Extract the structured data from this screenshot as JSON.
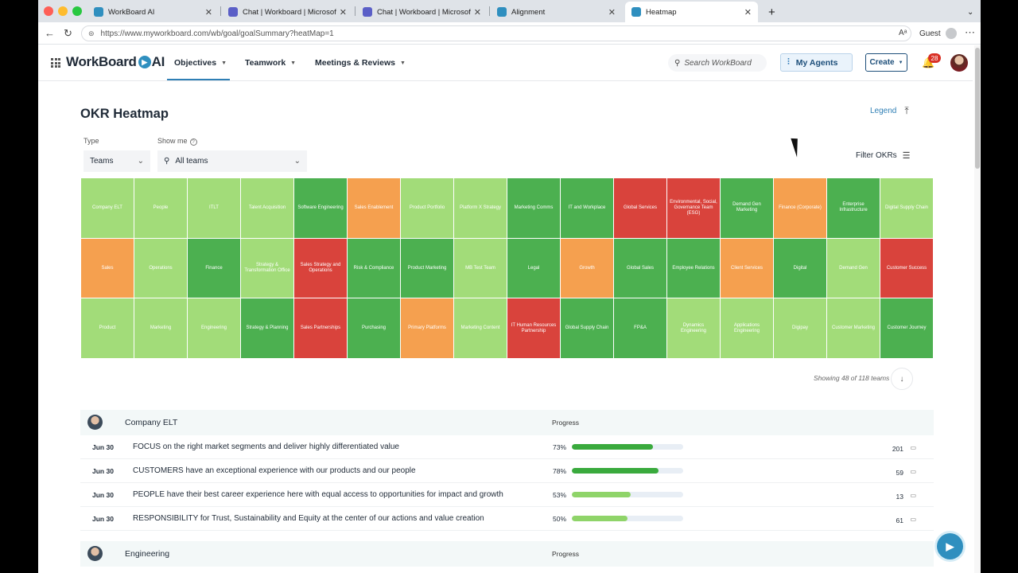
{
  "browser": {
    "tabs": [
      {
        "label": "WorkBoard AI",
        "active": false
      },
      {
        "label": "Chat | Workboard | Microsoft Teams",
        "active": false
      },
      {
        "label": "Chat | Workboard | Microsoft Teams",
        "active": false
      },
      {
        "label": "Alignment",
        "active": false
      },
      {
        "label": "Heatmap",
        "active": true
      }
    ],
    "new_tab_icon": "plus-icon",
    "url": "https://www.myworkboard.com/wb/goal/goalSummary?heatMap=1",
    "profile_label": "Guest"
  },
  "header": {
    "logo_text": "WorkBoard",
    "logo_suffix": "AI",
    "nav": [
      {
        "label": "Objectives"
      },
      {
        "label": "Teamwork"
      },
      {
        "label": "Meetings & Reviews"
      }
    ],
    "search_placeholder": "Search WorkBoard",
    "agents_label": "My Agents",
    "create_label": "Create",
    "notification_count": "28"
  },
  "page": {
    "title": "OKR Heatmap",
    "legend_label": "Legend",
    "type_label": "Type",
    "type_value": "Teams",
    "showme_label": "Show me",
    "showme_value": "All teams",
    "filter_label": "Filter OKRs",
    "showing_text": "Showing 48 of 118 teams"
  },
  "colors": {
    "light_green": "#a2dc79",
    "green": "#4cb050",
    "orange": "#f5a04f",
    "red": "#d9433c"
  },
  "heatmap": [
    {
      "label": "Company ELT",
      "status": "light_green"
    },
    {
      "label": "People",
      "status": "light_green"
    },
    {
      "label": "ITLT",
      "status": "light_green"
    },
    {
      "label": "Talent Acquisition",
      "status": "light_green"
    },
    {
      "label": "Software Engineering",
      "status": "green"
    },
    {
      "label": "Sales Enablement",
      "status": "orange"
    },
    {
      "label": "Product Portfolio",
      "status": "light_green"
    },
    {
      "label": "Platform X Strategy",
      "status": "light_green"
    },
    {
      "label": "Marketing Comms",
      "status": "green"
    },
    {
      "label": "IT and Workplace",
      "status": "green"
    },
    {
      "label": "Global Services",
      "status": "red"
    },
    {
      "label": "Environmental, Social, Governance Team (ESG)",
      "status": "red"
    },
    {
      "label": "Demand Gen Marketing",
      "status": "green"
    },
    {
      "label": "Finance (Corporate)",
      "status": "orange"
    },
    {
      "label": "Enterprise Infrastructure",
      "status": "green"
    },
    {
      "label": "Digital Supply Chain",
      "status": "light_green"
    },
    {
      "label": "Sales",
      "status": "orange"
    },
    {
      "label": "Operations",
      "status": "light_green"
    },
    {
      "label": "Finance",
      "status": "green"
    },
    {
      "label": "Strategy & Transformation Office",
      "status": "light_green"
    },
    {
      "label": "Sales Strategy and Operations",
      "status": "red"
    },
    {
      "label": "Risk & Compliance",
      "status": "green"
    },
    {
      "label": "Product Marketing",
      "status": "green"
    },
    {
      "label": "MB Test Team",
      "status": "light_green"
    },
    {
      "label": "Legal",
      "status": "green"
    },
    {
      "label": "Growth",
      "status": "orange"
    },
    {
      "label": "Global Sales",
      "status": "green"
    },
    {
      "label": "Employee Relations",
      "status": "green"
    },
    {
      "label": "Client Services",
      "status": "orange"
    },
    {
      "label": "Digital",
      "status": "green"
    },
    {
      "label": "Demand Gen",
      "status": "light_green"
    },
    {
      "label": "Customer Success",
      "status": "red"
    },
    {
      "label": "Product",
      "status": "light_green"
    },
    {
      "label": "Marketing",
      "status": "light_green"
    },
    {
      "label": "Engineering",
      "status": "light_green"
    },
    {
      "label": "Strategy & Planning",
      "status": "green"
    },
    {
      "label": "Sales Partnerships",
      "status": "red"
    },
    {
      "label": "Purchasing",
      "status": "green"
    },
    {
      "label": "Primary Platforms",
      "status": "orange"
    },
    {
      "label": "Marketing Content",
      "status": "light_green"
    },
    {
      "label": "IT Human Resources Partnership",
      "status": "red"
    },
    {
      "label": "Global Supply Chain",
      "status": "green"
    },
    {
      "label": "FP&A",
      "status": "green"
    },
    {
      "label": "Dynamics Engineering",
      "status": "light_green"
    },
    {
      "label": "Applications Engineering",
      "status": "light_green"
    },
    {
      "label": "Digipay",
      "status": "light_green"
    },
    {
      "label": "Customer Marketing",
      "status": "light_green"
    },
    {
      "label": "Customer Journey",
      "status": "green"
    }
  ],
  "teams": [
    {
      "name": "Company ELT",
      "progress_label": "Progress",
      "okrs": [
        {
          "date": "Jun 30",
          "title": "FOCUS on the right market segments and deliver highly differentiated value",
          "progress_text": "73%",
          "progress": 0.73,
          "bar_color": "#3aaa3d",
          "comments": "201"
        },
        {
          "date": "Jun 30",
          "title": "CUSTOMERS have an exceptional experience with our products and our people",
          "progress_text": "78%",
          "progress": 0.78,
          "bar_color": "#3aaa3d",
          "comments": "59"
        },
        {
          "date": "Jun 30",
          "title": "PEOPLE have their best career experience here with equal access to opportunities for impact and growth",
          "progress_text": "53%",
          "progress": 0.53,
          "bar_color": "#8fd469",
          "comments": "13"
        },
        {
          "date": "Jun 30",
          "title": "RESPONSIBILITY for Trust, Sustainability and Equity at the center of our actions and value creation",
          "progress_text": "50%",
          "progress": 0.5,
          "bar_color": "#8fd469",
          "comments": "61"
        }
      ]
    },
    {
      "name": "Engineering",
      "progress_label": "Progress",
      "okrs": []
    }
  ]
}
